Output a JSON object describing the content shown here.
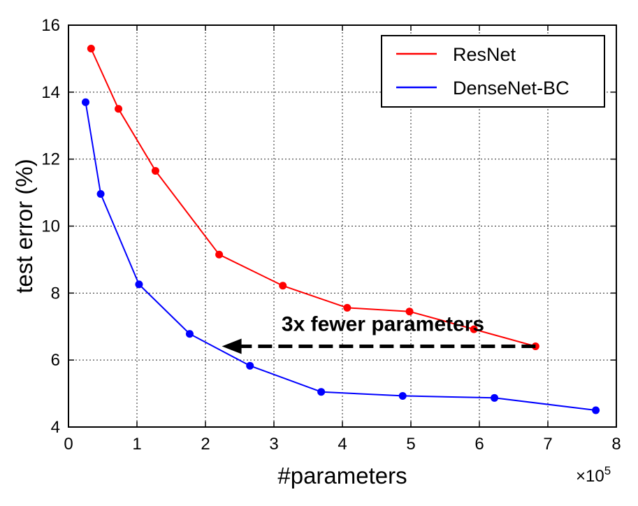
{
  "chart_data": {
    "type": "line",
    "title": "",
    "xlabel": "#parameters",
    "ylabel": "test error (%)",
    "x_multiplier_label": "×10",
    "x_multiplier_exponent": "5",
    "xlim": [
      0,
      8
    ],
    "ylim": [
      4,
      16
    ],
    "xticks": [
      "0",
      "1",
      "2",
      "3",
      "4",
      "5",
      "6",
      "7",
      "8"
    ],
    "yticks": [
      "4",
      "6",
      "8",
      "10",
      "12",
      "14",
      "16"
    ],
    "grid": true,
    "legend_position": "top-right",
    "series": [
      {
        "name": "ResNet",
        "color": "#ff0000",
        "x": [
          0.33,
          0.73,
          1.27,
          2.2,
          3.13,
          4.07,
          4.98,
          5.92,
          6.82
        ],
        "y": [
          15.3,
          13.5,
          11.65,
          9.15,
          8.22,
          7.56,
          7.45,
          6.92,
          6.41
        ]
      },
      {
        "name": "DenseNet-BC",
        "color": "#0000ff",
        "x": [
          0.25,
          0.47,
          1.03,
          1.77,
          2.65,
          3.69,
          4.88,
          6.22,
          7.7
        ],
        "y": [
          13.7,
          10.96,
          8.26,
          6.78,
          5.83,
          5.05,
          4.93,
          4.87,
          4.5
        ]
      }
    ],
    "annotation": {
      "text": "3x fewer parameters",
      "arrow_from": [
        6.82,
        6.41
      ],
      "arrow_to": [
        2.2,
        6.41
      ]
    }
  }
}
